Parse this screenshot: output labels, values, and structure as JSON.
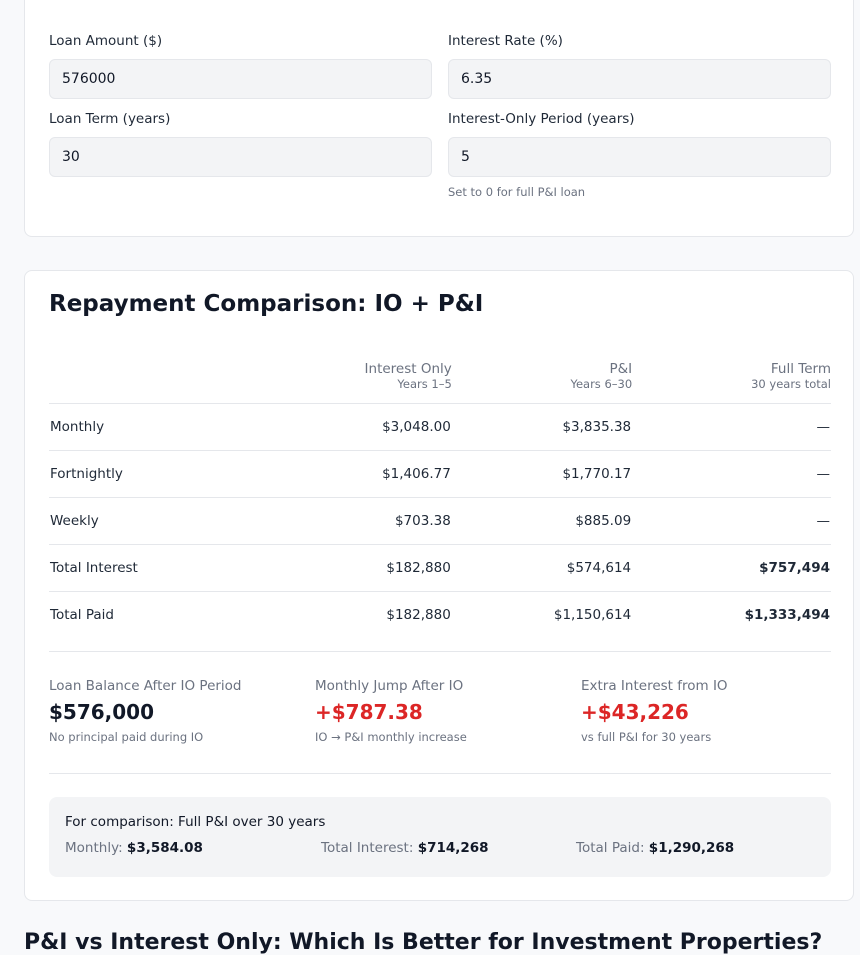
{
  "loan_inputs": {
    "fields": [
      {
        "label": "Loan Amount ($)",
        "value": "576000"
      },
      {
        "label": "Interest Rate (%)",
        "value": "6.35"
      },
      {
        "label": "Loan Term (years)",
        "value": "30"
      },
      {
        "label": "Interest-Only Period (years)",
        "value": "5",
        "hint": "Set to 0 for full P&I loan"
      }
    ]
  },
  "comparison": {
    "title": "Repayment Comparison: IO + P&I",
    "columns": [
      {
        "title": "Interest Only",
        "subtitle": "Years 1–5"
      },
      {
        "title": "P&I",
        "subtitle": "Years 6–30"
      },
      {
        "title": "Full Term",
        "subtitle": "30 years total"
      }
    ],
    "rows": [
      {
        "label": "Monthly",
        "cells": [
          "$3,048.00",
          "$3,835.38",
          "—"
        ]
      },
      {
        "label": "Fortnightly",
        "cells": [
          "$1,406.77",
          "$1,770.17",
          "—"
        ]
      },
      {
        "label": "Weekly",
        "cells": [
          "$703.38",
          "$885.09",
          "—"
        ]
      },
      {
        "label": "Total Interest",
        "cells": [
          "$182,880",
          "$574,614",
          "$757,494"
        ]
      },
      {
        "label": "Total Paid",
        "cells": [
          "$182,880",
          "$1,150,614",
          "$1,333,494"
        ]
      }
    ],
    "stats": [
      {
        "label": "Loan Balance After IO Period",
        "value": "$576,000",
        "note": "No principal paid during IO",
        "tone": "neutral"
      },
      {
        "label": "Monthly Jump After IO",
        "value": "+$787.38",
        "note": "IO → P&I monthly increase",
        "tone": "alert"
      },
      {
        "label": "Extra Interest from IO",
        "value": "+$43,226",
        "note": "vs full P&I for 30 years",
        "tone": "alert"
      }
    ],
    "full_pi": {
      "title": "For comparison: Full P&I over 30 years",
      "items": [
        {
          "label": "Monthly:",
          "value": "$3,584.08"
        },
        {
          "label": "Total Interest:",
          "value": "$714,268"
        },
        {
          "label": "Total Paid:",
          "value": "$1,290,268"
        }
      ]
    }
  },
  "next_heading": "P&I vs Interest Only: Which Is Better for Investment Properties?"
}
